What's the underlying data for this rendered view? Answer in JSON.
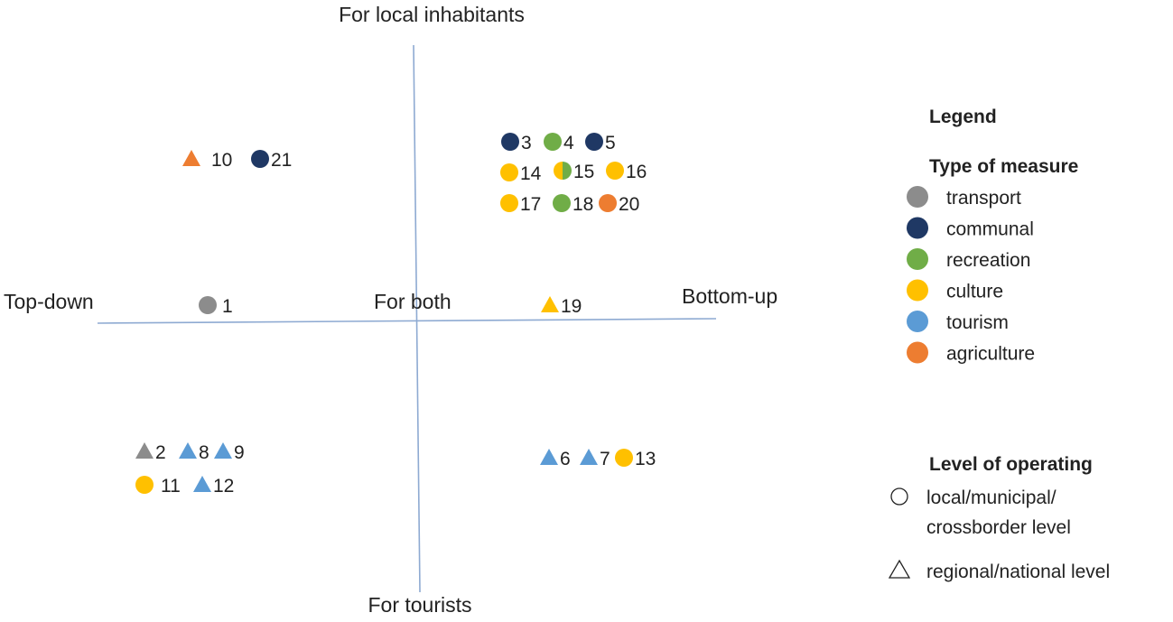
{
  "axes": {
    "top": "For local inhabitants",
    "bottom": "For tourists",
    "left": "Top-down",
    "right": "Bottom-up",
    "center": "For both"
  },
  "colors": {
    "transport": "#8c8c8c",
    "communal": "#1f3864",
    "recreation": "#70ad47",
    "culture": "#ffc000",
    "tourism": "#5b9bd5",
    "agriculture": "#ed7d31"
  },
  "legend": {
    "title": "Legend",
    "type_title": "Type of measure",
    "types": [
      {
        "key": "transport",
        "label": "transport"
      },
      {
        "key": "communal",
        "label": "communal"
      },
      {
        "key": "recreation",
        "label": "recreation"
      },
      {
        "key": "culture",
        "label": "culture"
      },
      {
        "key": "tourism",
        "label": "tourism"
      },
      {
        "key": "agriculture",
        "label": "agriculture"
      }
    ],
    "level_title": "Level of operating",
    "levels": [
      {
        "shape": "circle",
        "label_lines": [
          "local/municipal/",
          "crossborder level"
        ]
      },
      {
        "shape": "triangle",
        "label_lines": [
          "regional/national level"
        ]
      }
    ]
  },
  "points": [
    {
      "id": "1",
      "type": "transport",
      "shape": "circle"
    },
    {
      "id": "2",
      "type": "transport",
      "shape": "triangle"
    },
    {
      "id": "3",
      "type": "communal",
      "shape": "circle"
    },
    {
      "id": "4",
      "type": "recreation",
      "shape": "circle"
    },
    {
      "id": "5",
      "type": "communal",
      "shape": "circle"
    },
    {
      "id": "6",
      "type": "tourism",
      "shape": "triangle"
    },
    {
      "id": "7",
      "type": "tourism",
      "shape": "triangle"
    },
    {
      "id": "8",
      "type": "tourism",
      "shape": "triangle"
    },
    {
      "id": "9",
      "type": "tourism",
      "shape": "triangle"
    },
    {
      "id": "10",
      "type": "agriculture",
      "shape": "triangle"
    },
    {
      "id": "11",
      "type": "culture",
      "shape": "circle"
    },
    {
      "id": "12",
      "type": "tourism",
      "shape": "triangle"
    },
    {
      "id": "13",
      "type": "culture",
      "shape": "circle"
    },
    {
      "id": "14",
      "type": "culture",
      "shape": "circle"
    },
    {
      "id": "15",
      "type": "culture+recreation",
      "shape": "half-circle"
    },
    {
      "id": "16",
      "type": "culture",
      "shape": "circle"
    },
    {
      "id": "17",
      "type": "culture",
      "shape": "circle"
    },
    {
      "id": "18",
      "type": "recreation",
      "shape": "circle"
    },
    {
      "id": "19",
      "type": "culture",
      "shape": "triangle"
    },
    {
      "id": "20",
      "type": "agriculture",
      "shape": "circle"
    },
    {
      "id": "21",
      "type": "communal",
      "shape": "circle"
    }
  ]
}
